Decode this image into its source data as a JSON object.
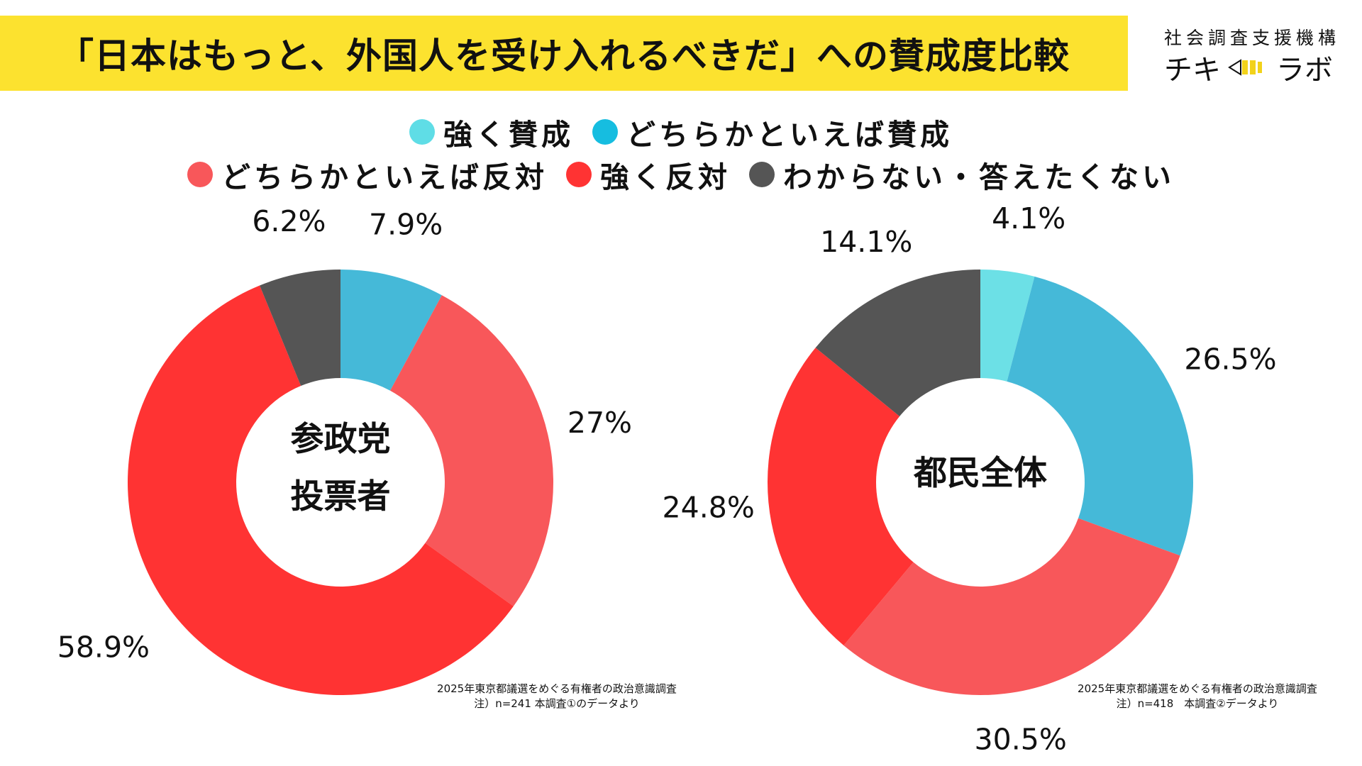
{
  "title": "「日本はもっと、外国人を受け入れるべきだ」への賛成度比較",
  "logo": {
    "org": "社会調査支援機構",
    "brand_left": "チキ",
    "brand_right": "ラボ"
  },
  "colors": {
    "title_bg": "#fce22f",
    "strongly_agree": "#6ce0e6",
    "somewhat_agree": "#45b9d8",
    "somewhat_disagree": "#f8575a",
    "strongly_disagree": "#ff3333",
    "dont_know": "#555555"
  },
  "legend": {
    "row1": [
      {
        "label": "強く賛成",
        "color": "#5fdde6"
      },
      {
        "label": "どちらかといえば賛成",
        "color": "#16bde0"
      }
    ],
    "row2": [
      {
        "label": "どちらかといえば反対",
        "color": "#f8575a"
      },
      {
        "label": "強く反対",
        "color": "#ff3333"
      },
      {
        "label": "わからない・答えたくない",
        "color": "#555555"
      }
    ]
  },
  "chart_data": [
    {
      "type": "pie",
      "donut": true,
      "center_label": [
        "参政党",
        "投票者"
      ],
      "categories": [
        "強く賛成",
        "どちらかといえば賛成",
        "どちらかといえば反対",
        "強く反対",
        "わからない・答えたくない"
      ],
      "values": [
        0,
        7.9,
        27,
        58.9,
        6.2
      ],
      "labels": [
        "",
        "7.9%",
        "27%",
        "58.9%",
        "6.2%"
      ],
      "source": [
        "2025年東京都議選をめぐる有権者の政治意識調査",
        "注）n=241 本調査①のデータより"
      ]
    },
    {
      "type": "pie",
      "donut": true,
      "center_label": [
        "都民全体"
      ],
      "categories": [
        "強く賛成",
        "どちらかといえば賛成",
        "どちらかといえば反対",
        "強く反対",
        "わからない・答えたくない"
      ],
      "values": [
        4.1,
        26.5,
        30.5,
        24.8,
        14.1
      ],
      "labels": [
        "4.1%",
        "26.5%",
        "30.5%",
        "24.8%",
        "14.1%"
      ],
      "source": [
        "2025年東京都議選をめぐる有権者の政治意識調査",
        "注）n=418　本調査②データより"
      ]
    }
  ]
}
